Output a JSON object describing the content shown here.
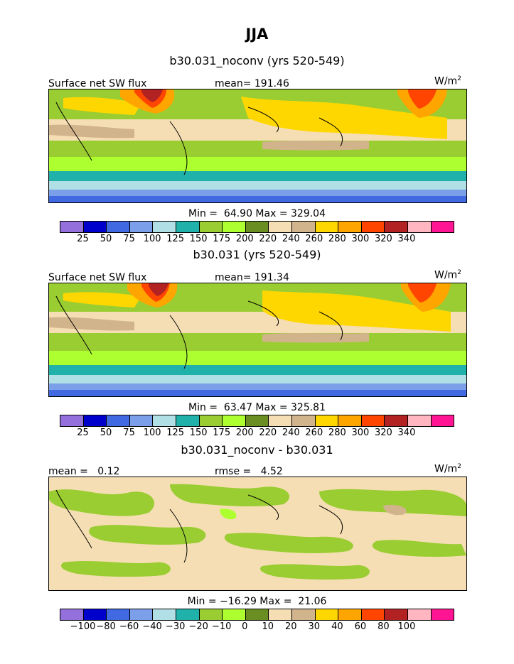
{
  "figure": {
    "title": "JJA"
  },
  "colors": {
    "sw_palette": [
      "#9370db",
      "#0000cd",
      "#4169e1",
      "#7b9fe8",
      "#b0e0e6",
      "#20b2aa",
      "#9acd32",
      "#adff2f",
      "#6b8e23",
      "#f5deb3",
      "#d2b48c",
      "#ffd700",
      "#ffa500",
      "#ff4500",
      "#b22222",
      "#ffb6c1",
      "#ff1493"
    ],
    "land_outline": "#000000"
  },
  "chart_data": [
    {
      "type": "heatmap",
      "title": "b30.031_noconv (yrs 520-549)",
      "variable": "Surface net SW flux",
      "mean_text": "mean= 191.46",
      "units": "W/m",
      "units_sup": "2",
      "minmax_text": "Min =  64.90 Max = 329.04",
      "min": 64.9,
      "max": 329.04,
      "mean": 191.46,
      "levels": [
        "25",
        "50",
        "75",
        "100",
        "125",
        "150",
        "175",
        "200",
        "220",
        "240",
        "260",
        "280",
        "300",
        "320",
        "340"
      ]
    },
    {
      "type": "heatmap",
      "title": "b30.031 (yrs 520-549)",
      "variable": "Surface net SW flux",
      "mean_text": "mean= 191.34",
      "units": "W/m",
      "units_sup": "2",
      "minmax_text": "Min =  63.47 Max = 325.81",
      "min": 63.47,
      "max": 325.81,
      "mean": 191.34,
      "levels": [
        "25",
        "50",
        "75",
        "100",
        "125",
        "150",
        "175",
        "200",
        "220",
        "240",
        "260",
        "280",
        "300",
        "320",
        "340"
      ]
    },
    {
      "type": "heatmap",
      "title": "b30.031_noconv - b30.031",
      "variable": "mean =   0.12",
      "mean_text": "rmse =   4.52",
      "units": "W/m",
      "units_sup": "2",
      "minmax_text": "Min = −16.29 Max =  21.06",
      "min": -16.29,
      "max": 21.06,
      "mean": 0.12,
      "rmse": 4.52,
      "levels": [
        "−100",
        "−80",
        "−60",
        "−40",
        "−30",
        "−20",
        "−10",
        "0",
        "10",
        "20",
        "30",
        "40",
        "60",
        "80",
        "100"
      ]
    }
  ]
}
